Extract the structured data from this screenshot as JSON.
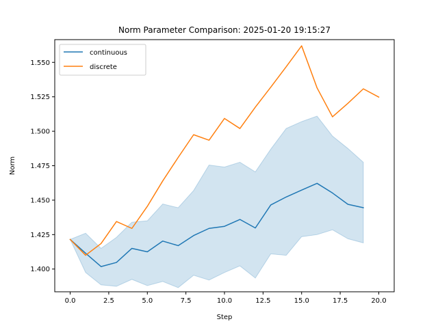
{
  "chart_data": {
    "type": "line",
    "title": "Norm Parameter Comparison: 2025-01-20 19:15:27",
    "xlabel": "Step",
    "ylabel": "Norm",
    "xlim": [
      -1.0,
      21.0
    ],
    "ylim": [
      1.3835,
      1.5665
    ],
    "xticks": [
      0.0,
      2.5,
      5.0,
      7.5,
      10.0,
      12.5,
      15.0,
      17.5,
      20.0
    ],
    "xtick_labels": [
      "0.0",
      "2.5",
      "5.0",
      "7.5",
      "10.0",
      "12.5",
      "15.0",
      "17.5",
      "20.0"
    ],
    "yticks": [
      1.4,
      1.425,
      1.45,
      1.475,
      1.5,
      1.525,
      1.55
    ],
    "ytick_labels": [
      "1.400",
      "1.425",
      "1.450",
      "1.475",
      "1.500",
      "1.525",
      "1.550"
    ],
    "grid": false,
    "legend_position": "upper left",
    "series": [
      {
        "name": "continuous",
        "color": "#1f77b4",
        "x": [
          0,
          1,
          2,
          3,
          4,
          5,
          6,
          7,
          8,
          9,
          10,
          11,
          12,
          13,
          14,
          15,
          16,
          17,
          18,
          19
        ],
        "values": [
          1.4215,
          1.4115,
          1.4018,
          1.4048,
          1.415,
          1.4125,
          1.4203,
          1.417,
          1.4243,
          1.4295,
          1.431,
          1.436,
          1.4298,
          1.4465,
          1.4523,
          1.4573,
          1.4622,
          1.4552,
          1.447,
          1.4445
        ],
        "band_lower": [
          1.4215,
          1.3975,
          1.3885,
          1.3875,
          1.3925,
          1.388,
          1.391,
          1.3865,
          1.3955,
          1.392,
          1.3975,
          1.4023,
          1.3935,
          1.411,
          1.41,
          1.4235,
          1.425,
          1.4285,
          1.422,
          1.419
        ],
        "band_upper": [
          1.4215,
          1.426,
          1.415,
          1.423,
          1.434,
          1.435,
          1.4472,
          1.4445,
          1.457,
          1.4755,
          1.474,
          1.4775,
          1.4705,
          1.487,
          1.502,
          1.507,
          1.511,
          1.4965,
          1.4875,
          1.4775
        ],
        "band_color": "#1f77b4",
        "band_opacity": 0.2
      },
      {
        "name": "discrete",
        "color": "#ff7f0e",
        "x": [
          0,
          1,
          2,
          3,
          4,
          5,
          6,
          7,
          8,
          9,
          10,
          11,
          12,
          13,
          14,
          15,
          16,
          17,
          18,
          19,
          20
        ],
        "values": [
          1.4215,
          1.41,
          1.4185,
          1.4345,
          1.4295,
          1.4455,
          1.464,
          1.481,
          1.4975,
          1.4935,
          1.5093,
          1.502,
          1.5175,
          1.532,
          1.5468,
          1.562,
          1.5315,
          1.5105,
          1.5203,
          1.5308,
          1.5248
        ]
      }
    ]
  }
}
